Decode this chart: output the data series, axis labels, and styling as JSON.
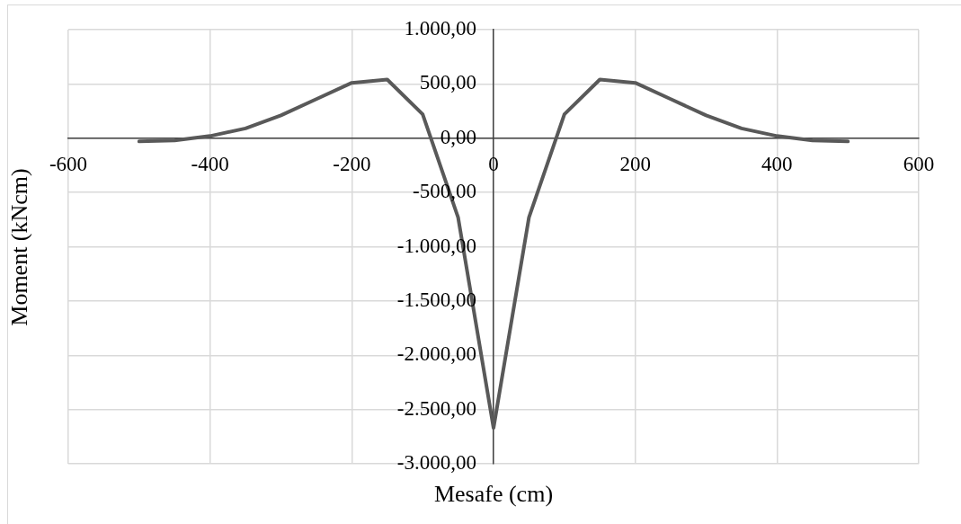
{
  "chart_data": {
    "type": "line",
    "xlabel": "Mesafe (cm)",
    "ylabel": "Moment (kNcm)",
    "x": [
      -500,
      -450,
      -400,
      -350,
      -300,
      -250,
      -200,
      -150,
      -100,
      -50,
      0,
      50,
      100,
      150,
      200,
      250,
      300,
      350,
      400,
      450,
      500
    ],
    "series": [
      {
        "color": "#595959",
        "values": [
          -30,
          -20,
          20,
          90,
          210,
          360,
          510,
          540,
          220,
          -730,
          -2670,
          -730,
          220,
          540,
          510,
          360,
          210,
          90,
          20,
          -20,
          -30
        ]
      }
    ],
    "xlim": [
      -600,
      600
    ],
    "xticks": [
      -600,
      -400,
      -200,
      0,
      200,
      400,
      600
    ],
    "ylim": [
      -3000,
      1000
    ],
    "yticks": [
      {
        "value": -3000,
        "label": "-3.000,00"
      },
      {
        "value": -2500,
        "label": "-2.500,00"
      },
      {
        "value": -2000,
        "label": "-2.000,00"
      },
      {
        "value": -1500,
        "label": "-1.500,00"
      },
      {
        "value": -1000,
        "label": "-1.000,00"
      },
      {
        "value": -500,
        "label": "-500,00"
      },
      {
        "value": 0,
        "label": "0,00"
      },
      {
        "value": 500,
        "label": "500,00"
      },
      {
        "value": 1000,
        "label": "1.000,00"
      }
    ],
    "grid": true,
    "marker": "none",
    "line_style": "solid"
  }
}
